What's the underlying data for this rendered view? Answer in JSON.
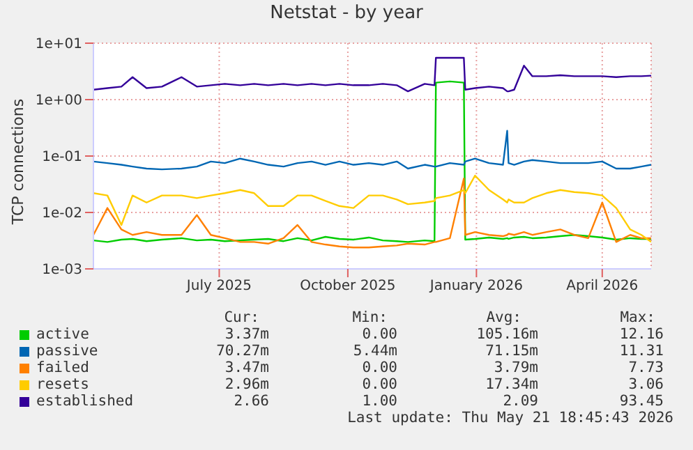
{
  "chart_data": {
    "type": "line",
    "title": "Netstat - by year",
    "ylabel": "TCP connections",
    "log": "y",
    "grid": true,
    "legend": "bottom",
    "marker": "none",
    "line_style": "solid",
    "ylim": [
      0.001,
      10
    ],
    "yticks": [
      {
        "value": 0.001,
        "label": "1e-03"
      },
      {
        "value": 0.01,
        "label": "1e-02"
      },
      {
        "value": 0.1,
        "label": "1e-01"
      },
      {
        "value": 1,
        "label": "1e+00"
      },
      {
        "value": 10,
        "label": "1e+01"
      }
    ],
    "xlim": [
      "2025-04-17",
      "2026-05-21"
    ],
    "xticks": [
      {
        "value": "2025-07-16",
        "label": "July 2025"
      },
      {
        "value": "2025-10-16",
        "label": "October 2025"
      },
      {
        "value": "2026-01-16",
        "label": "January 2026"
      },
      {
        "value": "2026-04-16",
        "label": "April 2026"
      }
    ],
    "x": [
      "2025-04-17",
      "2025-04-27",
      "2025-05-07",
      "2025-05-15",
      "2025-05-25",
      "2025-06-05",
      "2025-06-19",
      "2025-06-30",
      "2025-07-10",
      "2025-07-20",
      "2025-07-31",
      "2025-08-10",
      "2025-08-20",
      "2025-08-31",
      "2025-09-10",
      "2025-09-20",
      "2025-09-30",
      "2025-10-10",
      "2025-10-20",
      "2025-10-31",
      "2025-11-10",
      "2025-11-20",
      "2025-11-28",
      "2025-12-10",
      "2025-12-17",
      "2025-12-18",
      "2025-12-28",
      "2026-01-07",
      "2026-01-08",
      "2026-01-15",
      "2026-01-25",
      "2026-02-04",
      "2026-02-07",
      "2026-02-08",
      "2026-02-12",
      "2026-02-19",
      "2026-02-25",
      "2026-03-07",
      "2026-03-17",
      "2026-03-27",
      "2026-04-06",
      "2026-04-16",
      "2026-04-26",
      "2026-05-06",
      "2026-05-14",
      "2026-05-21"
    ],
    "series": [
      {
        "name": "active",
        "color": "#00cc00",
        "values": [
          0.0032,
          0.003,
          0.0033,
          0.0034,
          0.0031,
          0.0033,
          0.0035,
          0.0032,
          0.0033,
          0.0031,
          0.0032,
          0.0033,
          0.0034,
          0.0031,
          0.0035,
          0.0032,
          0.0037,
          0.0034,
          0.0033,
          0.0036,
          0.0032,
          0.0031,
          0.003,
          0.0032,
          0.0031,
          2.0,
          2.1,
          2.0,
          0.0033,
          0.0034,
          0.0036,
          0.0034,
          0.0035,
          0.0034,
          0.0036,
          0.0037,
          0.0035,
          0.0036,
          0.0038,
          0.004,
          0.0038,
          0.0036,
          0.0033,
          0.0035,
          0.0034,
          0.0034
        ]
      },
      {
        "name": "passive",
        "color": "#0066b3",
        "values": [
          0.08,
          0.075,
          0.07,
          0.065,
          0.06,
          0.058,
          0.06,
          0.065,
          0.08,
          0.075,
          0.09,
          0.08,
          0.07,
          0.065,
          0.075,
          0.08,
          0.07,
          0.08,
          0.07,
          0.075,
          0.07,
          0.08,
          0.06,
          0.07,
          0.065,
          0.065,
          0.075,
          0.07,
          0.08,
          0.09,
          0.075,
          0.07,
          0.28,
          0.075,
          0.07,
          0.08,
          0.085,
          0.08,
          0.075,
          0.075,
          0.075,
          0.08,
          0.06,
          0.06,
          0.065,
          0.07
        ]
      },
      {
        "name": "failed",
        "color": "#ff8000",
        "values": [
          0.004,
          0.012,
          0.005,
          0.004,
          0.0045,
          0.004,
          0.004,
          0.009,
          0.004,
          0.0035,
          0.003,
          0.003,
          0.0028,
          0.0035,
          0.006,
          0.003,
          0.0027,
          0.0025,
          0.0024,
          0.0024,
          0.0025,
          0.0026,
          0.0028,
          0.0027,
          0.003,
          0.003,
          0.0035,
          0.04,
          0.004,
          0.0045,
          0.004,
          0.0038,
          0.004,
          0.0042,
          0.004,
          0.0045,
          0.004,
          0.0045,
          0.005,
          0.004,
          0.0035,
          0.015,
          0.003,
          0.004,
          0.0035,
          0.0035
        ]
      },
      {
        "name": "resets",
        "color": "#ffcc00",
        "values": [
          0.022,
          0.02,
          0.006,
          0.02,
          0.015,
          0.02,
          0.02,
          0.018,
          0.02,
          0.022,
          0.025,
          0.022,
          0.013,
          0.013,
          0.02,
          0.02,
          0.016,
          0.013,
          0.012,
          0.02,
          0.02,
          0.017,
          0.014,
          0.015,
          0.016,
          0.018,
          0.02,
          0.025,
          0.022,
          0.045,
          0.025,
          0.017,
          0.015,
          0.017,
          0.015,
          0.015,
          0.018,
          0.022,
          0.025,
          0.023,
          0.022,
          0.02,
          0.012,
          0.005,
          0.004,
          0.003
        ]
      },
      {
        "name": "established",
        "color": "#330099",
        "values": [
          1.5,
          1.6,
          1.7,
          2.5,
          1.6,
          1.7,
          2.5,
          1.7,
          1.8,
          1.9,
          1.8,
          1.9,
          1.8,
          1.9,
          1.8,
          1.9,
          1.8,
          1.9,
          1.8,
          1.8,
          1.9,
          1.8,
          1.4,
          1.9,
          1.8,
          5.5,
          5.5,
          5.5,
          1.5,
          1.6,
          1.7,
          1.6,
          1.4,
          1.4,
          1.5,
          4.0,
          2.6,
          2.6,
          2.7,
          2.6,
          2.6,
          2.6,
          2.5,
          2.6,
          2.6,
          2.66
        ]
      }
    ],
    "annotations": [
      "Cur:",
      "Min:",
      "Avg:",
      "Max:",
      "3.37m",
      "0.00",
      "105.16m",
      "12.16",
      "70.27m",
      "5.44m",
      "71.15m",
      "11.31",
      "3.47m",
      "0.00",
      "3.79m",
      "7.73",
      "2.96m",
      "0.00",
      "17.34m",
      "3.06",
      "2.66",
      "1.00",
      "2.09",
      "93.45",
      "Last update: Thu May 21 18:45:43 2026"
    ]
  }
}
